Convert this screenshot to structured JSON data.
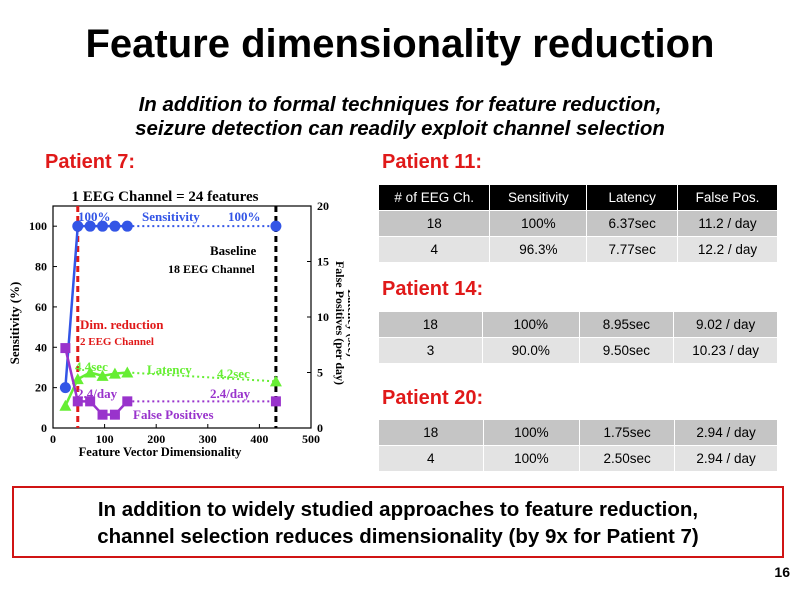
{
  "slide": {
    "title": "Feature dimensionality reduction",
    "subtitle_line1": "In addition to formal techniques for feature reduction,",
    "subtitle_line2": "seizure detection can readily exploit channel selection",
    "conclusion_line1": "In addition to widely studied approaches to feature reduction,",
    "conclusion_line2": "channel selection reduces dimensionality (by 9x for Patient  7)",
    "page_number": "16"
  },
  "patient7": {
    "label": "Patient 7:",
    "chart_title": "1 EEG Channel = 24 features",
    "annotations": {
      "sens_left": "100%",
      "sens_name": "Sensitivity",
      "sens_right": "100%",
      "baseline1": "Baseline",
      "baseline2": "18 EEG Channel",
      "dimred1": "Dim. reduction",
      "dimred2": "2 EEG Channel",
      "lat_left": "4.4sec",
      "lat_name": "Latency",
      "lat_right": "4.2sec",
      "fp_left": "2.4/day",
      "fp_right": "2.4/day",
      "fp_name": "False Positives"
    }
  },
  "chart_data": {
    "type": "line",
    "title": "1 EEG Channel = 24 features",
    "xlabel": "Feature Vector Dimensionality",
    "ylabel": "Sensitivity (%)",
    "y2label": "Latency (sec) False Positives (per day)",
    "xlim": [
      0,
      500
    ],
    "ylim": [
      0,
      110
    ],
    "y2lim": [
      0,
      20
    ],
    "xticks": [
      "0",
      "100",
      "200",
      "300",
      "400",
      "500"
    ],
    "yticks": [
      "0",
      "20",
      "40",
      "60",
      "80",
      "100"
    ],
    "y2ticks": [
      "0",
      "5",
      "10",
      "15",
      "20"
    ],
    "vlines": [
      {
        "x": 48,
        "color": "#e01919"
      },
      {
        "x": 432,
        "color": "#000000"
      }
    ],
    "series": [
      {
        "name": "Sensitivity",
        "axis": "left",
        "color": "#3355e6",
        "marker": "circle",
        "x": [
          24,
          48,
          72,
          96,
          120,
          144,
          432
        ],
        "y": [
          20,
          100,
          100,
          100,
          100,
          100,
          100
        ]
      },
      {
        "name": "Latency",
        "axis": "right",
        "color": "#66ee33",
        "marker": "triangle",
        "x": [
          24,
          48,
          72,
          96,
          120,
          144,
          432
        ],
        "y": [
          2.0,
          4.4,
          5.0,
          4.7,
          4.9,
          5.0,
          4.2
        ]
      },
      {
        "name": "False Positives",
        "axis": "right",
        "color": "#9933cc",
        "marker": "square",
        "x": [
          24,
          48,
          72,
          96,
          120,
          144,
          432
        ],
        "y": [
          7.2,
          2.4,
          2.4,
          1.2,
          1.2,
          2.4,
          2.4
        ]
      }
    ]
  },
  "patient11": {
    "label": "Patient 11:",
    "headers": [
      "# of EEG Ch.",
      "Sensitivity",
      "Latency",
      "False Pos."
    ],
    "rows": [
      [
        "18",
        "100%",
        "6.37sec",
        "11.2 / day"
      ],
      [
        "4",
        "96.3%",
        "7.77sec",
        "12.2 / day"
      ]
    ]
  },
  "patient14": {
    "label": "Patient 14:",
    "rows": [
      [
        "18",
        "100%",
        "8.95sec",
        "9.02 / day"
      ],
      [
        "3",
        "90.0%",
        "9.50sec",
        "10.23 / day"
      ]
    ]
  },
  "patient20": {
    "label": "Patient 20:",
    "rows": [
      [
        "18",
        "100%",
        "1.75sec",
        "2.94 / day"
      ],
      [
        "4",
        "100%",
        "2.50sec",
        "2.94 / day"
      ]
    ]
  }
}
